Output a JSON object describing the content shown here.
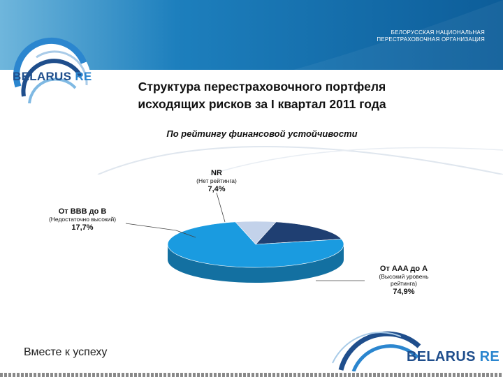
{
  "header": {
    "org_line1": "БЕЛОРУССКАЯ НАЦИОНАЛЬНАЯ",
    "org_line2": "ПЕРЕСТРАХОВОЧНАЯ ОРГАНИЗАЦИЯ"
  },
  "logo": {
    "word1": "BELARUS",
    "word2": "RE"
  },
  "slide": {
    "title_line1": "Структура перестраховочного портфеля",
    "title_line2": "исходящих рисков за I квартал 2011 года",
    "subtitle": "По рейтингу финансовой устойчивости"
  },
  "chart_data": {
    "type": "pie",
    "title": "",
    "slices": [
      {
        "name": "От AAA до A",
        "description_line1": "(Высокий уровень",
        "description_line2": "рейтинга)",
        "value": 74.9,
        "value_label": "74,9%",
        "color": "#1a9be0"
      },
      {
        "name": "От BBB до B",
        "description_line1": "(Недостаточно высокий)",
        "description_line2": "",
        "value": 17.7,
        "value_label": "17,7%",
        "color": "#1f3f72"
      },
      {
        "name": "NR",
        "description_line1": "(Нет рейтинга)",
        "description_line2": "",
        "value": 7.4,
        "value_label": "7,4%",
        "color": "#c3d2ea"
      }
    ]
  },
  "footer": {
    "slogan": "Вместе к успеху"
  },
  "colors": {
    "brand_dark": "#1f4e8c",
    "brand_light": "#2b86cf",
    "header": "#1d7fbd"
  }
}
